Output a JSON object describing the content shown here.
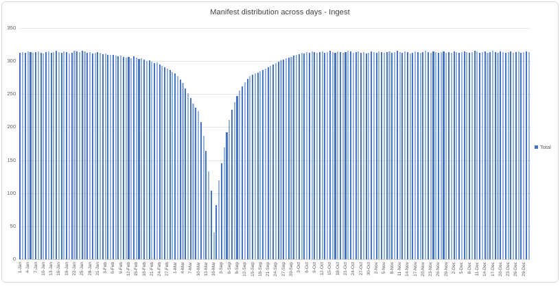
{
  "window": {
    "background": "#ffffff",
    "border_color": "#d9d9d9"
  },
  "chart_data": {
    "type": "bar",
    "title": "Manifest distribution across days - Ingest",
    "series_name": "Total",
    "bar_color": "#4472C4",
    "bar_color_alt_opacity": 0.55,
    "text_color": "#595959",
    "grid": "horizontal",
    "legend_position": "right",
    "ylim": [
      0,
      350
    ],
    "yticks": [
      0,
      50,
      100,
      150,
      200,
      250,
      300,
      350
    ],
    "x_tick_step": 3,
    "x_tick_labels": [
      "1-Jan",
      "4-Jan",
      "7-Jan",
      "10-Jan",
      "13-Jan",
      "16-Jan",
      "19-Jan",
      "22-Jan",
      "25-Jan",
      "28-Jan",
      "31-Jan",
      "3-Feb",
      "6-Feb",
      "9-Feb",
      "12-Feb",
      "15-Feb",
      "18-Feb",
      "21-Feb",
      "24-Feb",
      "27-Feb",
      "1-Mar",
      "4-Mar",
      "7-Mar",
      "10-Mar",
      "13-Mar",
      "16-Mar",
      "3-Sep",
      "6-Sep",
      "9-Sep",
      "12-Sep",
      "15-Sep",
      "18-Sep",
      "21-Sep",
      "24-Sep",
      "27-Sep",
      "30-Sep",
      "3-Oct",
      "6-Oct",
      "9-Oct",
      "12-Oct",
      "15-Oct",
      "18-Oct",
      "21-Oct",
      "24-Oct",
      "27-Oct",
      "30-Oct",
      "2-Nov",
      "5-Nov",
      "8-Nov",
      "11-Nov",
      "14-Nov",
      "17-Nov",
      "20-Nov",
      "23-Nov",
      "26-Nov",
      "29-Nov",
      "2-Dec",
      "5-Dec",
      "8-Dec",
      "11-Dec",
      "14-Dec",
      "17-Dec",
      "20-Dec",
      "23-Dec",
      "26-Dec",
      "29-Dec"
    ],
    "values": [
      313,
      314,
      313,
      315,
      314,
      313,
      314,
      315,
      313,
      312,
      314,
      315,
      313,
      314,
      316,
      314,
      313,
      315,
      314,
      312,
      313,
      316,
      315,
      314,
      316,
      315,
      313,
      314,
      312,
      313,
      314,
      313,
      311,
      312,
      310,
      309,
      310,
      308,
      307,
      308,
      306,
      305,
      306,
      304,
      307,
      305,
      303,
      304,
      302,
      300,
      301,
      299,
      297,
      298,
      295,
      293,
      291,
      289,
      287,
      284,
      281,
      277,
      272,
      267,
      259,
      251,
      244,
      236,
      230,
      224,
      208,
      187,
      164,
      133,
      104,
      40,
      82,
      119,
      145,
      169,
      192,
      211,
      226,
      238,
      247,
      255,
      262,
      268,
      273,
      277,
      279,
      281,
      283,
      285,
      287,
      289,
      291,
      293,
      295,
      297,
      299,
      301,
      302,
      304,
      305,
      306,
      308,
      309,
      311,
      313,
      312,
      314,
      313,
      315,
      314,
      313,
      314,
      315,
      313,
      314,
      316,
      314,
      313,
      315,
      314,
      313,
      314,
      316,
      315,
      313,
      314,
      315,
      313,
      314,
      312,
      313,
      315,
      314,
      313,
      315,
      314,
      313,
      314,
      315,
      313,
      314,
      316,
      314,
      313,
      315,
      314,
      312,
      313,
      315,
      314,
      313,
      314,
      316,
      314,
      313,
      315,
      314,
      313,
      314,
      315,
      313,
      314,
      313,
      315,
      314,
      313,
      314,
      315,
      314,
      313,
      314,
      316,
      315,
      313,
      314,
      315,
      313,
      314,
      316,
      314,
      313,
      315,
      314,
      313,
      314,
      315,
      313,
      314,
      315,
      313,
      314,
      315,
      314
    ]
  }
}
